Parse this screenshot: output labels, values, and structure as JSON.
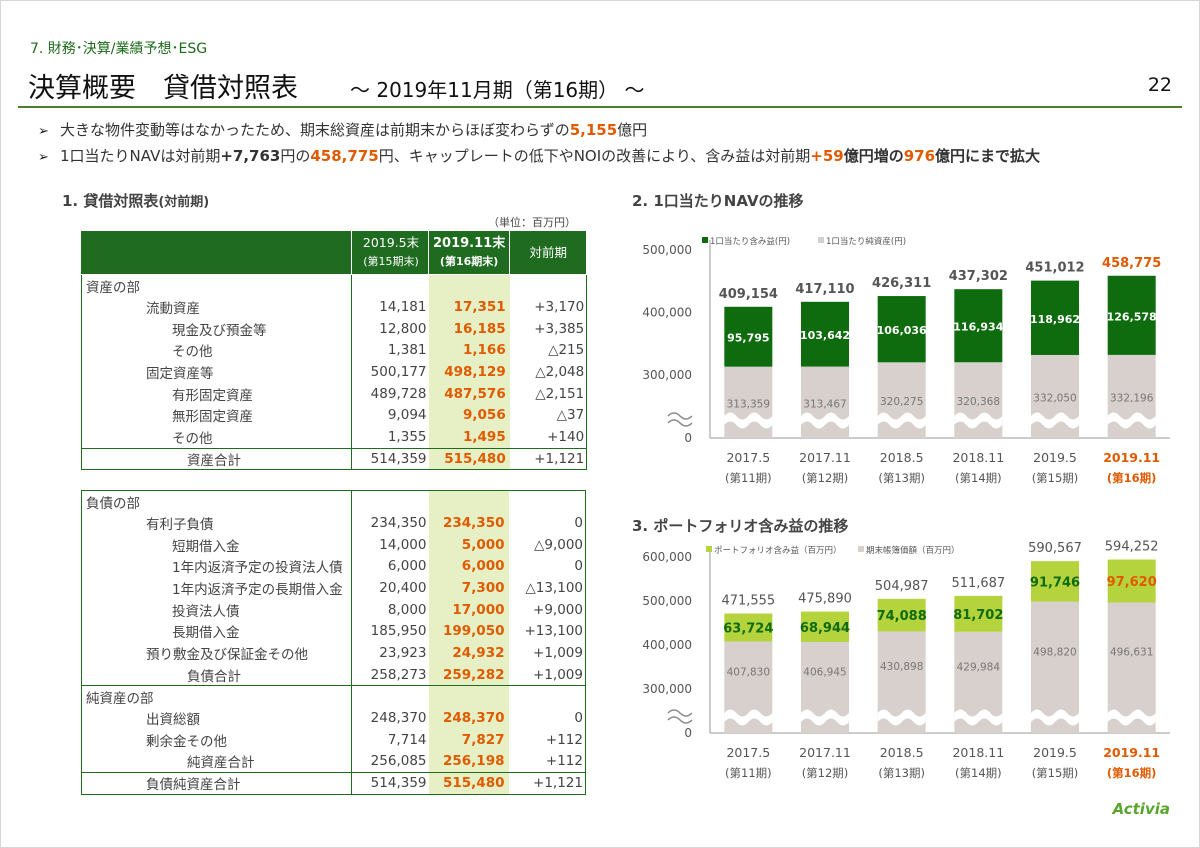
{
  "section": "7. 財務･決算/業績予想･ESG",
  "title": "決算概要　貸借対照表",
  "subtitle": "～ 2019年11月期（第16期） ～",
  "page_number": "22",
  "bullets": [
    [
      {
        "t": "大きな物件変動等はなかったため、期末総資産は前期末からほぼ変わらずの"
      },
      {
        "t": "5,155",
        "c": "hl"
      },
      {
        "t": "億円"
      }
    ],
    [
      {
        "t": "1口当たりNAVは対前期"
      },
      {
        "t": "+7,763",
        "c": "bd"
      },
      {
        "t": "円の"
      },
      {
        "t": "458,775",
        "c": "hl"
      },
      {
        "t": "円、キャップレートの低下やNOIの改善により、含み益は対前期"
      },
      {
        "t": "+59",
        "c": "hl"
      },
      {
        "t": "億円増の",
        "c": "bd"
      },
      {
        "t": "976",
        "c": "hl"
      },
      {
        "t": "億円にまで拡大",
        "c": "bd"
      }
    ]
  ],
  "table_heading": "1. 貸借対照表",
  "table_heading_note": "(対前期)",
  "table_unit": "（単位：百万円）",
  "table_header": {
    "prev": "2019.5末",
    "prev_sub": "(第15期末)",
    "cur": "2019.11末",
    "cur_sub": "(第16期末)",
    "diff": "対前期"
  },
  "assets": [
    {
      "label": "資産の部",
      "indent": 0,
      "v1": "",
      "v2": "",
      "v3": ""
    },
    {
      "label": "流動資産",
      "indent": 1,
      "v1": "14,181",
      "v2": "17,351",
      "v3": "+3,170"
    },
    {
      "label": "現金及び預金等",
      "indent": 2,
      "v1": "12,800",
      "v2": "16,185",
      "v3": "+3,385"
    },
    {
      "label": "その他",
      "indent": 2,
      "v1": "1,381",
      "v2": "1,166",
      "v3": "△215"
    },
    {
      "label": "固定資産等",
      "indent": 1,
      "v1": "500,177",
      "v2": "498,129",
      "v3": "△2,048"
    },
    {
      "label": "有形固定資産",
      "indent": 2,
      "v1": "489,728",
      "v2": "487,576",
      "v3": "△2,151"
    },
    {
      "label": "無形固定資産",
      "indent": 2,
      "v1": "9,094",
      "v2": "9,056",
      "v3": "△37"
    },
    {
      "label": "その他",
      "indent": 2,
      "v1": "1,355",
      "v2": "1,495",
      "v3": "+140"
    },
    {
      "label": "資産合計",
      "indent": 3,
      "v1": "514,359",
      "v2": "515,480",
      "v3": "+1,121",
      "sep": true
    }
  ],
  "liabilities": [
    {
      "label": "負債の部",
      "indent": 0,
      "v1": "",
      "v2": "",
      "v3": ""
    },
    {
      "label": "有利子負債",
      "indent": 1,
      "v1": "234,350",
      "v2": "234,350",
      "v3": "0"
    },
    {
      "label": "短期借入金",
      "indent": 2,
      "v1": "14,000",
      "v2": "5,000",
      "v3": "△9,000"
    },
    {
      "label": "1年内返済予定の投資法人債",
      "indent": 2,
      "v1": "6,000",
      "v2": "6,000",
      "v3": "0"
    },
    {
      "label": "1年内返済予定の長期借入金",
      "indent": 2,
      "v1": "20,400",
      "v2": "7,300",
      "v3": "△13,100"
    },
    {
      "label": "投資法人債",
      "indent": 2,
      "v1": "8,000",
      "v2": "17,000",
      "v3": "+9,000"
    },
    {
      "label": "長期借入金",
      "indent": 2,
      "v1": "185,950",
      "v2": "199,050",
      "v3": "+13,100"
    },
    {
      "label": "預り敷金及び保証金その他",
      "indent": 1,
      "v1": "23,923",
      "v2": "24,932",
      "v3": "+1,009"
    },
    {
      "label": "負債合計",
      "indent": 3,
      "v1": "258,273",
      "v2": "259,282",
      "v3": "+1,009"
    },
    {
      "label": "純資産の部",
      "indent": 0,
      "v1": "",
      "v2": "",
      "v3": "",
      "sep": true
    },
    {
      "label": "出資総額",
      "indent": 1,
      "v1": "248,370",
      "v2": "248,370",
      "v3": "0"
    },
    {
      "label": "剰余金その他",
      "indent": 1,
      "v1": "7,714",
      "v2": "7,827",
      "v3": "+112"
    },
    {
      "label": "純資産合計",
      "indent": 3,
      "v1": "256,085",
      "v2": "256,198",
      "v3": "+112"
    },
    {
      "label": "負債純資産合計",
      "indent": 1,
      "v1": "514,359",
      "v2": "515,480",
      "v3": "+1,121",
      "sep": true
    }
  ],
  "nav_heading": "2. 1口当たりNAVの推移",
  "pf_heading": "3. ポートフォリオ含み益の推移",
  "periods": [
    "2017.5",
    "2017.11",
    "2018.5",
    "2018.11",
    "2019.5",
    "2019.11"
  ],
  "period_subs": [
    "(第11期)",
    "(第12期)",
    "(第13期)",
    "(第14期)",
    "(第15期)",
    "(第16期)"
  ],
  "colors": {
    "green_dark": "#0e6b0e",
    "green_light": "#b5d33d",
    "gray_bar": "#d7d0cd",
    "accent": "#e05a00",
    "header_green": "#1f6b1f"
  },
  "logo": "Activia",
  "chart_data": [
    {
      "type": "bar",
      "stacked": true,
      "categories": [
        "2017.5",
        "2017.11",
        "2018.5",
        "2018.11",
        "2019.5",
        "2019.11"
      ],
      "series": [
        {
          "name": "1口当たり純資産(円)",
          "values": [
            313359,
            313467,
            320275,
            320368,
            332050,
            332196
          ]
        },
        {
          "name": "1口当たり含み益(円)",
          "values": [
            95795,
            103642,
            106036,
            116934,
            118962,
            126578
          ]
        }
      ],
      "totals": [
        "409,154",
        "417,110",
        "426,311",
        "437,302",
        "451,012",
        "458,775"
      ],
      "yticks": [
        "500,000",
        "400,000",
        "300,000",
        "0"
      ],
      "ylim": [
        250000,
        500000
      ],
      "axis_break": true
    },
    {
      "type": "bar",
      "stacked": true,
      "categories": [
        "2017.5",
        "2017.11",
        "2018.5",
        "2018.11",
        "2019.5",
        "2019.11"
      ],
      "series": [
        {
          "name": "期末帳簿価額（百万円）",
          "values": [
            407830,
            406945,
            430898,
            429984,
            498820,
            496631
          ]
        },
        {
          "name": "ポートフォリオ含み益（百万円）",
          "values": [
            63724,
            68944,
            74088,
            81702,
            91746,
            97620
          ]
        }
      ],
      "totals": [
        "471,555",
        "475,890",
        "504,987",
        "511,687",
        "590,567",
        "594,252"
      ],
      "yticks": [
        "600,000",
        "500,000",
        "400,000",
        "300,000",
        "0"
      ],
      "ylim": [
        250000,
        600000
      ],
      "axis_break": true
    }
  ]
}
